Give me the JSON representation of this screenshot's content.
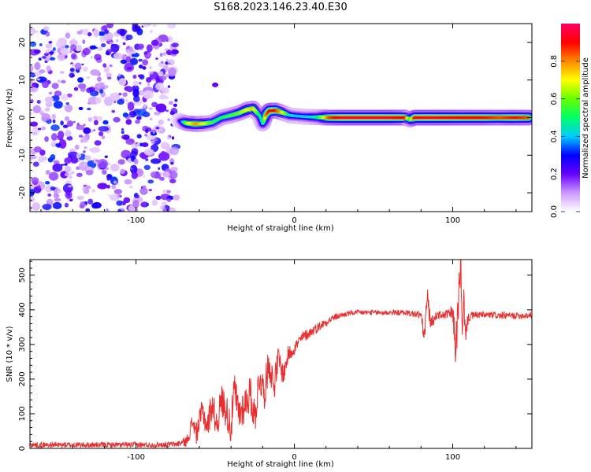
{
  "title": "S168.2023.146.23.40.E30",
  "chart_data": [
    {
      "type": "heatmap",
      "xlabel": "Height of straight line (km)",
      "ylabel": "Frequency (Hz)",
      "xlim": [
        -167,
        150
      ],
      "ylim": [
        -25,
        25
      ],
      "xticks": [
        -100,
        0,
        100
      ],
      "xtick_labels": [
        "-100",
        "0",
        "100"
      ],
      "yticks": [
        -20,
        -10,
        0,
        10,
        20
      ],
      "ytick_labels": [
        "-20",
        "-10",
        "0",
        "10",
        "20"
      ],
      "noise_region_x": [
        -167,
        -73
      ],
      "isolated_spot": {
        "x": -50,
        "y": 8.7
      },
      "ridge": {
        "x": [
          -73,
          -68,
          -62,
          -57,
          -52,
          -46,
          -40,
          -35,
          -30,
          -26,
          -22,
          -20,
          -18,
          -16,
          -12,
          -8,
          -3,
          2,
          8,
          15,
          22,
          30,
          40,
          50,
          60,
          70,
          73,
          76,
          80,
          90,
          100,
          110,
          120,
          130,
          140,
          148
        ],
        "y": [
          -0.8,
          -1.5,
          -1.7,
          -1.6,
          -1.3,
          0,
          0.6,
          1.2,
          2.1,
          2.4,
          0.5,
          -1.8,
          0.8,
          1.8,
          1.9,
          1.4,
          0.6,
          0.4,
          0.2,
          0.1,
          0,
          0,
          0,
          0,
          0,
          0,
          -0.5,
          0,
          0,
          0,
          0,
          0,
          0,
          0,
          0,
          0
        ],
        "amplitude": [
          0.15,
          0.65,
          0.8,
          0.7,
          0.55,
          0.5,
          0.55,
          0.6,
          0.7,
          0.75,
          0.5,
          0.4,
          0.8,
          0.9,
          0.9,
          0.75,
          0.45,
          0.4,
          0.4,
          0.5,
          0.85,
          0.95,
          0.95,
          0.95,
          0.95,
          0.9,
          0.55,
          0.9,
          0.95,
          0.95,
          0.92,
          0.9,
          0.9,
          0.85,
          0.9,
          0.85
        ]
      },
      "colorbar": {
        "label": "Normalized spectral amplitude",
        "range": [
          0,
          1
        ],
        "ticks": [
          0,
          0.2,
          0.4,
          0.6,
          0.8
        ],
        "tick_labels": [
          "0.0",
          "0.2",
          "0.4",
          "0.6",
          "0.8"
        ],
        "colors": [
          "#ffffff",
          "#cc99ff",
          "#6600ff",
          "#0000ff",
          "#00ccff",
          "#00ff66",
          "#66ff00",
          "#ffff00",
          "#ff8800",
          "#ff0000",
          "#ff0066"
        ]
      }
    },
    {
      "type": "line",
      "xlabel": "Height of straight line (km)",
      "ylabel": "SNR (10 * v/v)",
      "xlim": [
        -167,
        150
      ],
      "ylim": [
        0,
        545
      ],
      "xticks": [
        -100,
        0,
        100
      ],
      "xtick_labels": [
        "-100",
        "0",
        "100"
      ],
      "yticks": [
        0,
        100,
        200,
        300,
        400,
        500
      ],
      "ytick_labels": [
        "0",
        "100",
        "200",
        "300",
        "400",
        "500"
      ],
      "color": "#e83030",
      "series": [
        {
          "x": [
            -167,
            -150,
            -130,
            -110,
            -90,
            -75,
            -68,
            -64,
            -62,
            -58,
            -55,
            -52,
            -49,
            -46,
            -43,
            -40,
            -38,
            -35,
            -31,
            -28,
            -25,
            -22,
            -19,
            -16,
            -13,
            -10,
            -7,
            -4,
            0,
            5,
            10,
            15,
            20,
            25,
            30,
            35,
            40,
            50,
            60,
            70,
            80,
            82,
            84,
            86,
            90,
            95,
            100,
            102,
            104,
            105,
            106,
            107,
            108,
            110,
            115,
            120,
            130,
            140,
            150
          ],
          "y": [
            10,
            10,
            10,
            10,
            10,
            12,
            20,
            80,
            40,
            110,
            60,
            130,
            70,
            140,
            110,
            60,
            170,
            100,
            130,
            160,
            90,
            210,
            160,
            250,
            180,
            260,
            210,
            270,
            290,
            320,
            335,
            350,
            365,
            378,
            385,
            390,
            392,
            392,
            392,
            392,
            385,
            320,
            440,
            360,
            385,
            385,
            390,
            290,
            450,
            545,
            300,
            430,
            330,
            380,
            385,
            385,
            383,
            383,
            385
          ],
          "noise_amplitude": [
            8,
            8,
            8,
            8,
            8,
            8,
            15,
            30,
            30,
            40,
            40,
            45,
            45,
            50,
            50,
            55,
            55,
            55,
            55,
            55,
            55,
            50,
            50,
            50,
            45,
            40,
            30,
            25,
            20,
            18,
            15,
            14,
            12,
            10,
            8,
            8,
            8,
            8,
            8,
            8,
            12,
            30,
            30,
            20,
            12,
            12,
            25,
            60,
            80,
            60,
            60,
            40,
            30,
            15,
            10,
            10,
            10,
            10,
            10
          ]
        }
      ]
    }
  ]
}
